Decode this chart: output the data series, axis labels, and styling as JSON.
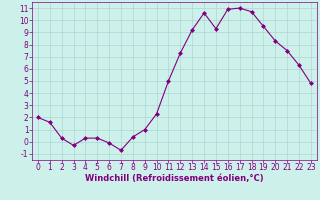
{
  "x": [
    0,
    1,
    2,
    3,
    4,
    5,
    6,
    7,
    8,
    9,
    10,
    11,
    12,
    13,
    14,
    15,
    16,
    17,
    18,
    19,
    20,
    21,
    22,
    23
  ],
  "y": [
    2.0,
    1.6,
    0.3,
    -0.3,
    0.3,
    0.3,
    -0.1,
    -0.7,
    0.4,
    1.0,
    2.3,
    5.0,
    7.3,
    9.2,
    10.6,
    9.3,
    10.9,
    11.0,
    10.7,
    9.5,
    8.3,
    7.5,
    6.3,
    4.8
  ],
  "line_color": "#800080",
  "marker": "D",
  "marker_size": 2.0,
  "bg_color": "#cef0ea",
  "grid_color": "#aad8d2",
  "xlabel": "Windchill (Refroidissement éolien,°C)",
  "xlim": [
    -0.5,
    23.5
  ],
  "ylim": [
    -1.5,
    11.5
  ],
  "yticks": [
    -1,
    0,
    1,
    2,
    3,
    4,
    5,
    6,
    7,
    8,
    9,
    10,
    11
  ],
  "xticks": [
    0,
    1,
    2,
    3,
    4,
    5,
    6,
    7,
    8,
    9,
    10,
    11,
    12,
    13,
    14,
    15,
    16,
    17,
    18,
    19,
    20,
    21,
    22,
    23
  ],
  "tick_color": "#800080",
  "label_color": "#800080",
  "tick_fontsize": 5.5,
  "xlabel_fontsize": 6.0
}
